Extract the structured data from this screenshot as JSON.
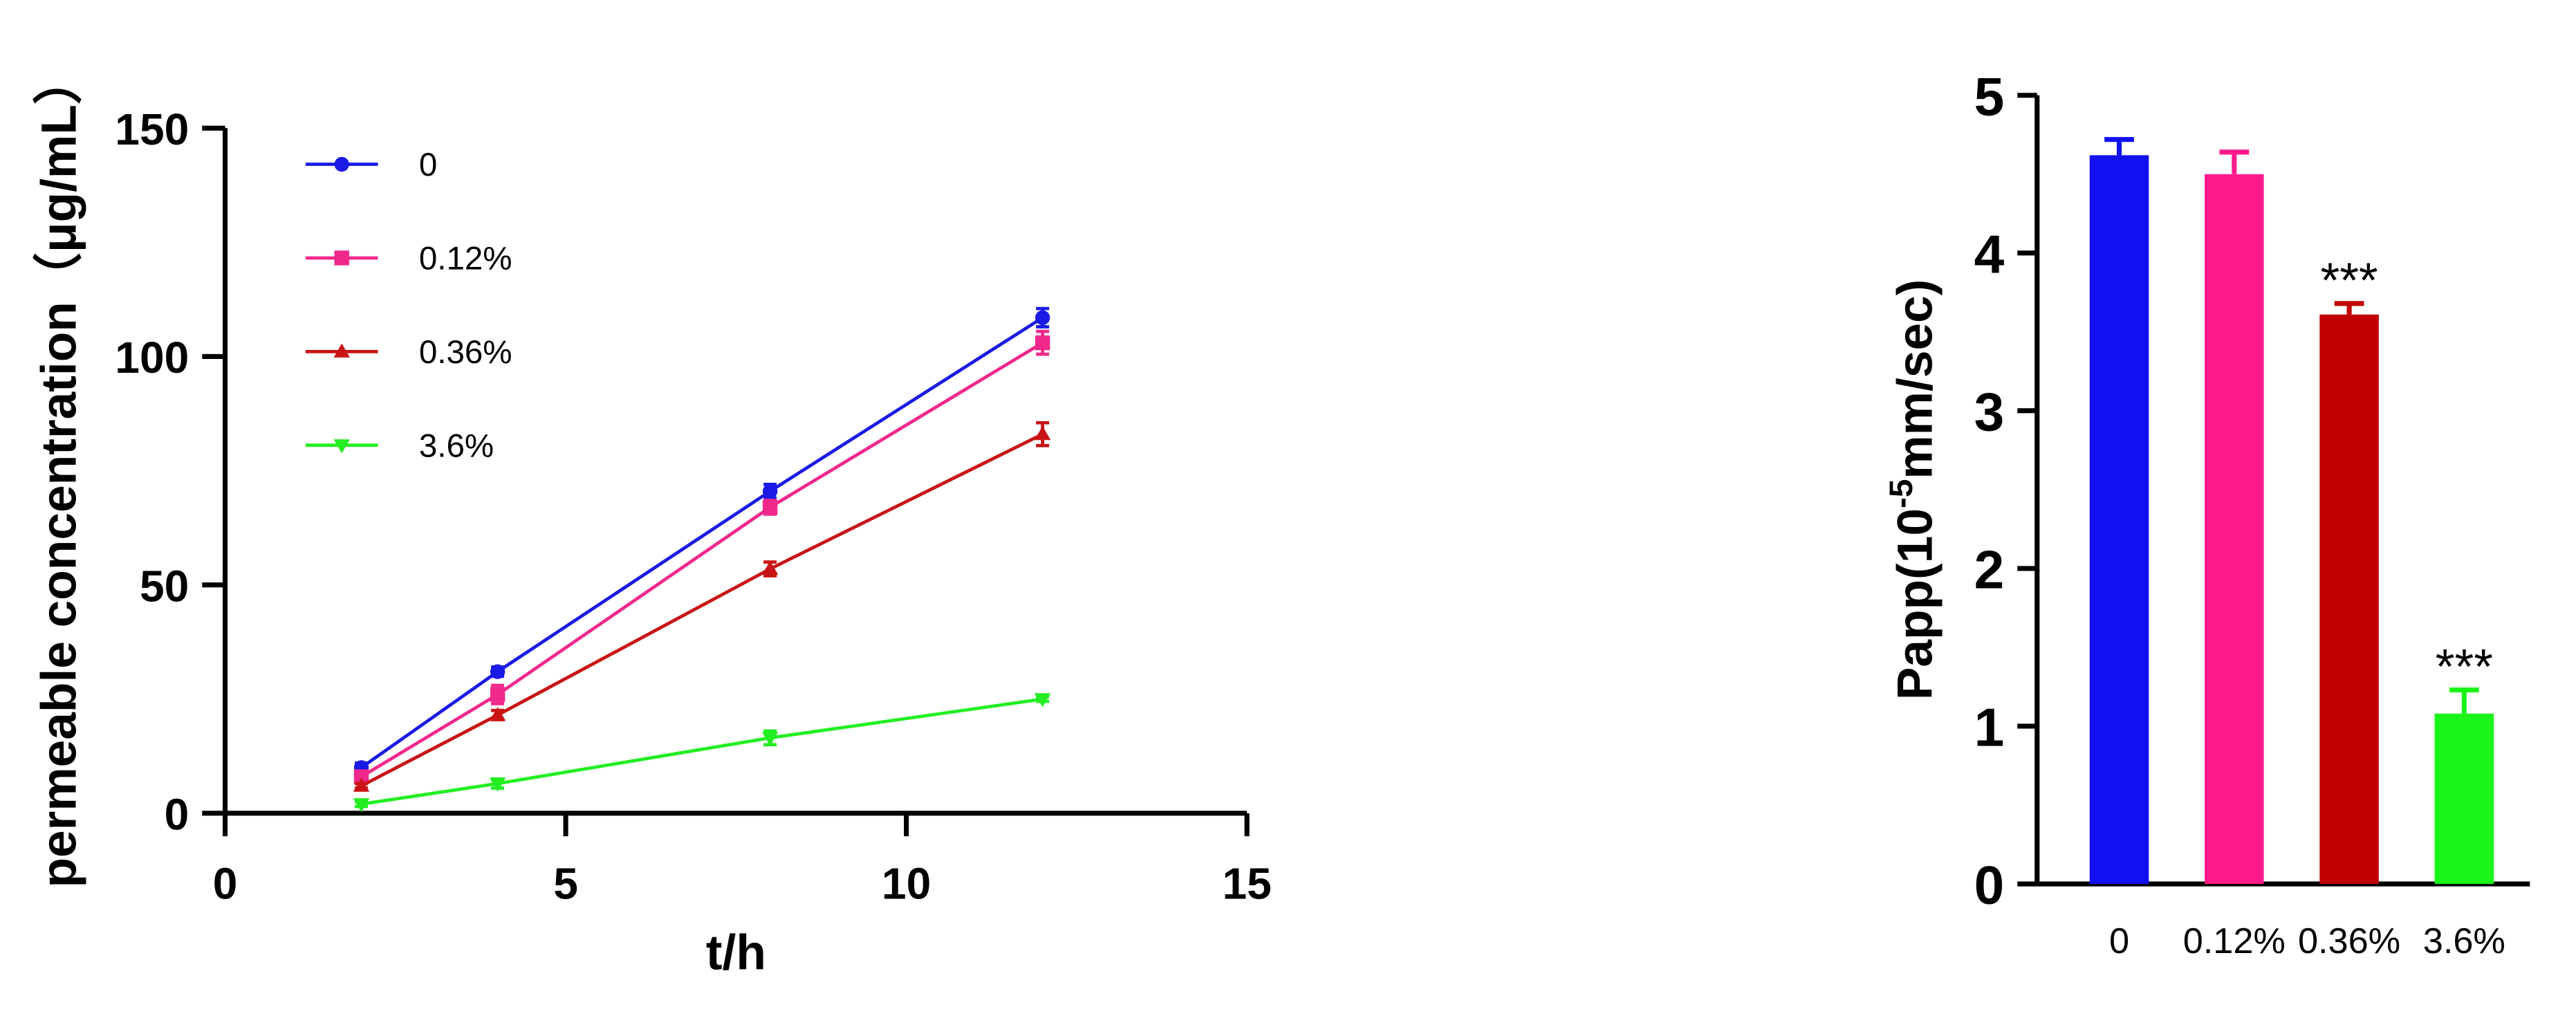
{
  "chart_data": [
    {
      "type": "line",
      "xlabel": "t/h",
      "ylabel": "permeable concentration（μg/mL）",
      "x": [
        2,
        4,
        8,
        12
      ],
      "series": [
        {
          "name": "0",
          "color": "#1a1ae6",
          "marker": "circle",
          "values": [
            10,
            31,
            70.5,
            108.5
          ],
          "errors": [
            1,
            1,
            1.5,
            2
          ]
        },
        {
          "name": "0.12%",
          "color": "#f0288c",
          "marker": "square",
          "values": [
            8,
            26,
            67,
            103
          ],
          "errors": [
            1,
            2,
            1.5,
            2.5
          ]
        },
        {
          "name": "0.36%",
          "color": "#c81414",
          "marker": "triangle-up",
          "values": [
            6,
            21.5,
            53.5,
            83
          ],
          "errors": [
            0.5,
            1,
            1.5,
            2.5
          ]
        },
        {
          "name": "3.6%",
          "color": "#22ee22",
          "marker": "triangle-down",
          "values": [
            2,
            6.5,
            16.5,
            25
          ],
          "errors": [
            0.5,
            1,
            1.5,
            0.5
          ]
        }
      ],
      "xlim": [
        0,
        15
      ],
      "xticks": [
        0,
        5,
        10,
        15
      ],
      "ylim": [
        0,
        150
      ],
      "yticks": [
        0,
        50,
        100,
        150
      ]
    },
    {
      "type": "bar",
      "ylabel": {
        "base": "Papp(10",
        "exponent": "-5",
        "unit": "mm/sec)"
      },
      "categories": [
        "0",
        "0.12%",
        "0.36%",
        "3.6%"
      ],
      "values": [
        4.62,
        4.5,
        3.61,
        1.08
      ],
      "errors": [
        0.1,
        0.14,
        0.07,
        0.15
      ],
      "colors": [
        "#1010f0",
        "#ff1a8c",
        "#c00000",
        "#19f519"
      ],
      "significance": [
        null,
        null,
        "***",
        "***"
      ],
      "ylim": [
        0,
        5
      ],
      "yticks": [
        0,
        1,
        2,
        3,
        4,
        5
      ]
    }
  ]
}
